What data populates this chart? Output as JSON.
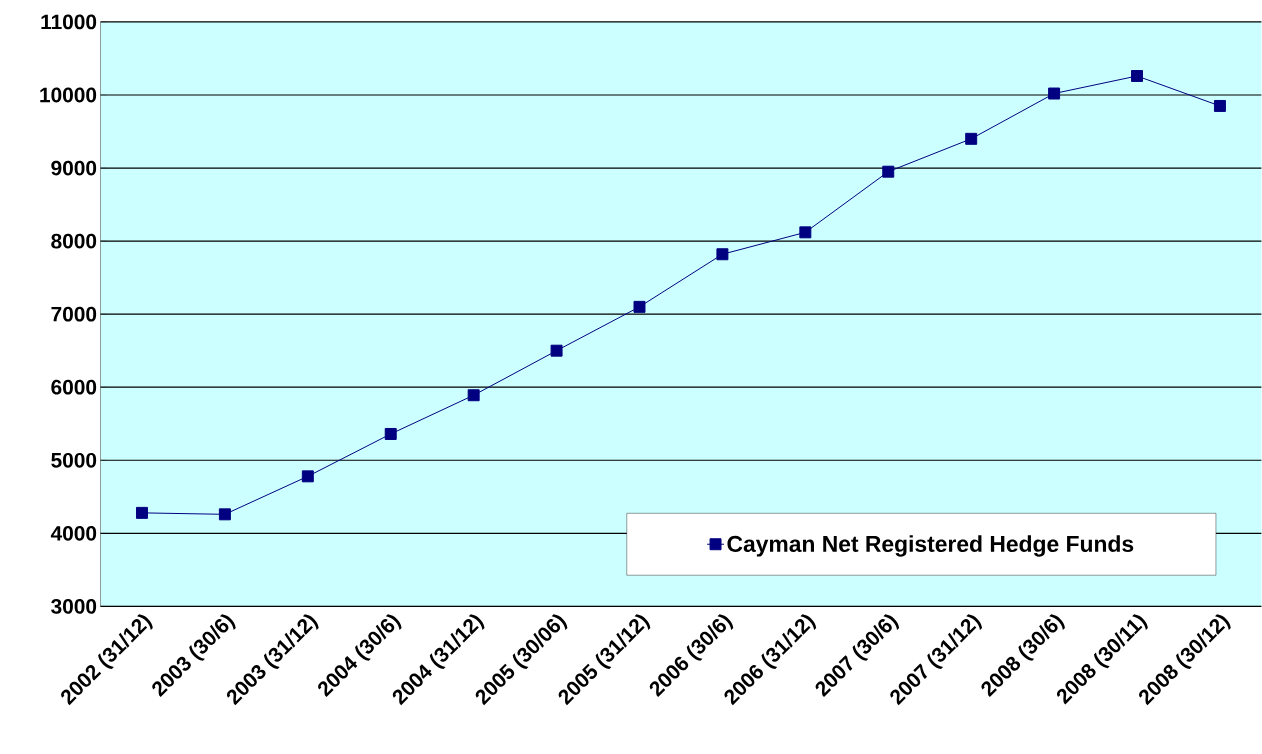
{
  "chart_data": {
    "type": "line",
    "categories": [
      "2002 (31/12)",
      "2003 (30/6)",
      "2003 (31/12)",
      "2004 (30/6)",
      "2004 (31/12)",
      "2005 (30/06)",
      "2005 (31/12)",
      "2006 (30/6)",
      "2006 (31/12)",
      "2007 (30/6)",
      "2007 (31/12)",
      "2008 (30/6)",
      "2008 (30/11)",
      "2008 (30/12)"
    ],
    "series": [
      {
        "name": "Cayman Net Registered Hedge Funds",
        "color": "#000080",
        "values": [
          4280,
          4260,
          4780,
          5360,
          5890,
          6500,
          7100,
          7820,
          8120,
          8950,
          9400,
          10020,
          10260,
          9850
        ]
      }
    ],
    "ylim": [
      3000,
      11000
    ],
    "yticks": [
      3000,
      4000,
      5000,
      6000,
      7000,
      8000,
      9000,
      10000,
      11000
    ],
    "grid": "y",
    "legend": "bottom right",
    "marker": "square",
    "line_style": "solid"
  }
}
